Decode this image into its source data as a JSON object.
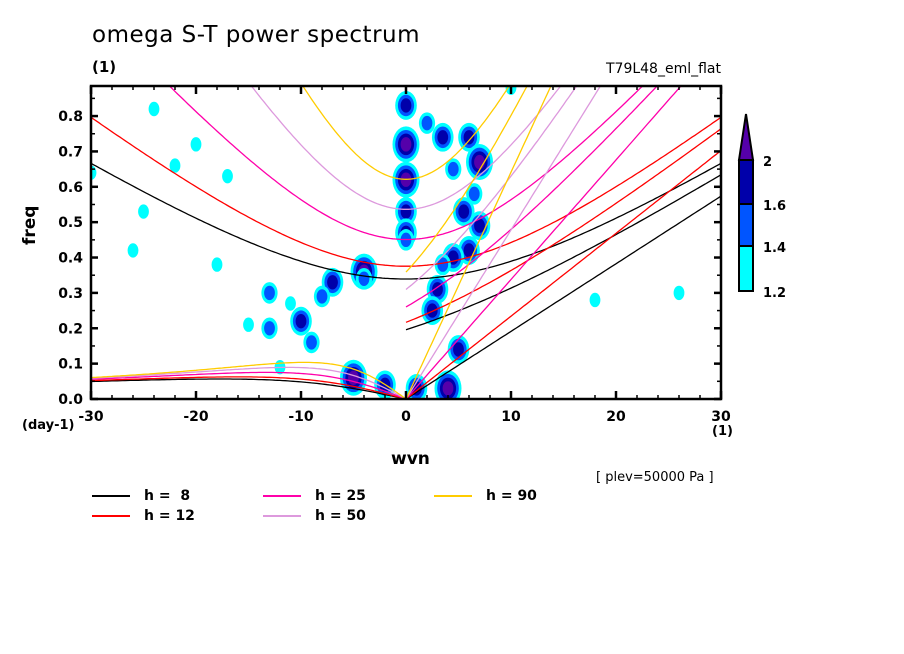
{
  "chart_data": {
    "type": "contour",
    "title": "omega S-T power spectrum",
    "subtitle_left": "(1)",
    "subtitle_right": "T79L48_eml_flat",
    "xlabel": "wvn",
    "ylabel": "freq",
    "x_unit": "(1)",
    "y_unit": "(day-1)",
    "level_annotation": "[ plev=50000 Pa ]",
    "xlim": [
      -30,
      30
    ],
    "ylim": [
      0.0,
      0.885
    ],
    "x_ticks": [
      -30,
      -20,
      -10,
      0,
      10,
      20,
      30
    ],
    "x_tick_labels": [
      "-30",
      "-20",
      "-10",
      "0",
      "10",
      "20",
      "30"
    ],
    "y_ticks": [
      0.0,
      0.1,
      0.2,
      0.3,
      0.4,
      0.5,
      0.6,
      0.7,
      0.8
    ],
    "y_tick_labels": [
      "0.0",
      "0.1",
      "0.2",
      "0.3",
      "0.4",
      "0.5",
      "0.6",
      "0.7",
      "0.8"
    ],
    "colorbar": {
      "levels": [
        1.2,
        1.4,
        1.6,
        2
      ],
      "level_labels": [
        "1.2",
        "1.4",
        "1.6",
        "2"
      ],
      "colors": [
        "#00ffff",
        "#0055ff",
        "#0000aa",
        "#5500aa"
      ],
      "extend": "max"
    },
    "dispersion_curves": [
      {
        "name": "h =  8",
        "h": 8,
        "color": "#000000"
      },
      {
        "name": "h = 12",
        "h": 12,
        "color": "#ff0000"
      },
      {
        "name": "h = 25",
        "h": 25,
        "color": "#ff00aa"
      },
      {
        "name": "h = 50",
        "h": 50,
        "color": "#dd99dd"
      },
      {
        "name": "h = 90",
        "h": 90,
        "color": "#ffcc00"
      }
    ],
    "contour_blobs": [
      {
        "wvn": 0,
        "freq": 0.83,
        "level": 3
      },
      {
        "wvn": 0,
        "freq": 0.72,
        "level": 4
      },
      {
        "wvn": 0,
        "freq": 0.62,
        "level": 4
      },
      {
        "wvn": 0,
        "freq": 0.53,
        "level": 3
      },
      {
        "wvn": 0,
        "freq": 0.47,
        "level": 3
      },
      {
        "wvn": 0,
        "freq": 0.45,
        "level": 2
      },
      {
        "wvn": -4,
        "freq": 0.36,
        "level": 4
      },
      {
        "wvn": -4,
        "freq": 0.34,
        "level": 2
      },
      {
        "wvn": -7,
        "freq": 0.33,
        "level": 3
      },
      {
        "wvn": -8,
        "freq": 0.29,
        "level": 2
      },
      {
        "wvn": -10,
        "freq": 0.22,
        "level": 3
      },
      {
        "wvn": -13,
        "freq": 0.3,
        "level": 2
      },
      {
        "wvn": -11,
        "freq": 0.27,
        "level": 1
      },
      {
        "wvn": -9,
        "freq": 0.16,
        "level": 2
      },
      {
        "wvn": -5,
        "freq": 0.06,
        "level": 4
      },
      {
        "wvn": -2,
        "freq": 0.04,
        "level": 3
      },
      {
        "wvn": 1,
        "freq": 0.03,
        "level": 3
      },
      {
        "wvn": 4,
        "freq": 0.03,
        "level": 4
      },
      {
        "wvn": 2,
        "freq": 0.78,
        "level": 2
      },
      {
        "wvn": 3.5,
        "freq": 0.74,
        "level": 3
      },
      {
        "wvn": 6,
        "freq": 0.74,
        "level": 3
      },
      {
        "wvn": 7,
        "freq": 0.67,
        "level": 4
      },
      {
        "wvn": 5.5,
        "freq": 0.53,
        "level": 3
      },
      {
        "wvn": 7,
        "freq": 0.49,
        "level": 3
      },
      {
        "wvn": 6,
        "freq": 0.42,
        "level": 3
      },
      {
        "wvn": 4.5,
        "freq": 0.4,
        "level": 3
      },
      {
        "wvn": 3.5,
        "freq": 0.38,
        "level": 2
      },
      {
        "wvn": 3,
        "freq": 0.31,
        "level": 3
      },
      {
        "wvn": 2.5,
        "freq": 0.25,
        "level": 3
      },
      {
        "wvn": 5,
        "freq": 0.14,
        "level": 3
      },
      {
        "wvn": 6.5,
        "freq": 0.58,
        "level": 2
      },
      {
        "wvn": 4.5,
        "freq": 0.65,
        "level": 2
      },
      {
        "wvn": -13,
        "freq": 0.2,
        "level": 2
      },
      {
        "wvn": -15,
        "freq": 0.21,
        "level": 1
      },
      {
        "wvn": -12,
        "freq": 0.09,
        "level": 1
      },
      {
        "wvn": -18,
        "freq": 0.38,
        "level": 1
      },
      {
        "wvn": -22,
        "freq": 0.66,
        "level": 1
      },
      {
        "wvn": -25,
        "freq": 0.53,
        "level": 1
      },
      {
        "wvn": -26,
        "freq": 0.42,
        "level": 1
      },
      {
        "wvn": -30,
        "freq": 0.64,
        "level": 1
      },
      {
        "wvn": 18,
        "freq": 0.28,
        "level": 1
      },
      {
        "wvn": 26,
        "freq": 0.3,
        "level": 1
      },
      {
        "wvn": -20,
        "freq": 0.72,
        "level": 1
      },
      {
        "wvn": -24,
        "freq": 0.82,
        "level": 1
      },
      {
        "wvn": -17,
        "freq": 0.63,
        "level": 1
      },
      {
        "wvn": 10,
        "freq": 0.88,
        "level": 1
      }
    ]
  },
  "legend": {
    "items": [
      {
        "label": "h =  8",
        "color": "#000000"
      },
      {
        "label": "h = 12",
        "color": "#ff0000"
      },
      {
        "label": "h = 25",
        "color": "#ff00aa"
      },
      {
        "label": "h = 50",
        "color": "#dd99dd"
      },
      {
        "label": "h = 90",
        "color": "#ffcc00"
      }
    ]
  }
}
